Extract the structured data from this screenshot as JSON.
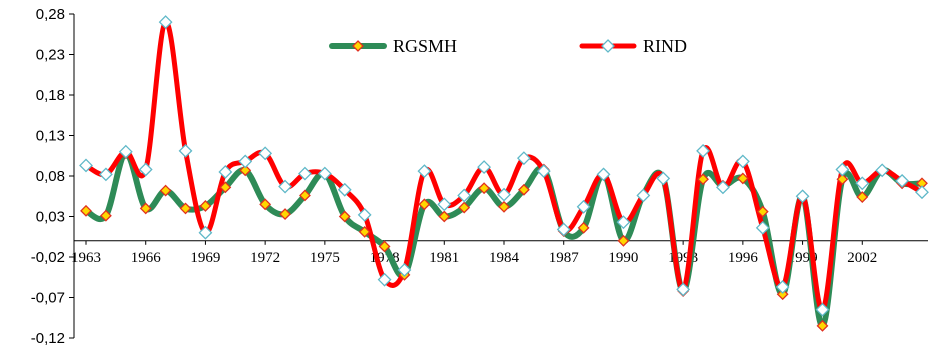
{
  "chart_data": {
    "type": "line",
    "title": "",
    "xlabel": "",
    "ylabel": "",
    "ylim": [
      -0.12,
      0.28
    ],
    "y_ticks": [
      "0,28",
      "0,23",
      "0,18",
      "0,13",
      "0,08",
      "0,03",
      "-0,02",
      "-0,07",
      "-0,12"
    ],
    "y_tick_values": [
      0.28,
      0.23,
      0.18,
      0.13,
      0.08,
      0.03,
      -0.02,
      -0.07,
      -0.12
    ],
    "x": [
      1963,
      1964,
      1965,
      1966,
      1967,
      1968,
      1969,
      1970,
      1971,
      1972,
      1973,
      1974,
      1975,
      1976,
      1977,
      1978,
      1979,
      1980,
      1981,
      1982,
      1983,
      1984,
      1985,
      1986,
      1987,
      1988,
      1989,
      1990,
      1991,
      1992,
      1993,
      1994,
      1995,
      1996,
      1997,
      1998,
      1999,
      2000,
      2001,
      2002,
      2003,
      2004,
      2005
    ],
    "x_ticks": [
      "1963",
      "1966",
      "1969",
      "1972",
      "1975",
      "1978",
      "1981",
      "1984",
      "1987",
      "1990",
      "1993",
      "1996",
      "1999",
      "2002"
    ],
    "x_tick_values": [
      1963,
      1966,
      1969,
      1972,
      1975,
      1978,
      1981,
      1984,
      1987,
      1990,
      1993,
      1996,
      1999,
      2002
    ],
    "grid": false,
    "legend_position": "top",
    "series": [
      {
        "name": "RGSMH",
        "color": "#2e8b57",
        "marker": "diamond",
        "marker_fill": "#ffd700",
        "marker_stroke": "#e03020",
        "values": [
          0.037,
          0.031,
          0.108,
          0.04,
          0.062,
          0.04,
          0.043,
          0.066,
          0.087,
          0.045,
          0.033,
          0.056,
          0.083,
          0.03,
          0.011,
          -0.007,
          -0.042,
          0.045,
          0.03,
          0.041,
          0.065,
          0.042,
          0.063,
          0.088,
          0.012,
          0.016,
          0.082,
          0.0,
          0.057,
          0.077,
          -0.062,
          0.076,
          0.068,
          0.077,
          0.036,
          -0.066,
          0.055,
          -0.105,
          0.076,
          0.054,
          0.087,
          0.071,
          0.071
        ]
      },
      {
        "name": "RIND",
        "color": "#ff0000",
        "marker": "diamond",
        "marker_fill": "#ffffff",
        "marker_stroke": "#5fb8c8",
        "values": [
          0.093,
          0.082,
          0.11,
          0.088,
          0.27,
          0.111,
          0.01,
          0.085,
          0.098,
          0.108,
          0.067,
          0.083,
          0.083,
          0.063,
          0.032,
          -0.048,
          -0.036,
          0.086,
          0.045,
          0.056,
          0.091,
          0.057,
          0.102,
          0.086,
          0.014,
          0.042,
          0.082,
          0.023,
          0.056,
          0.077,
          -0.06,
          0.111,
          0.066,
          0.098,
          0.016,
          -0.057,
          0.055,
          -0.085,
          0.088,
          0.071,
          0.087,
          0.074,
          0.06
        ]
      }
    ]
  }
}
